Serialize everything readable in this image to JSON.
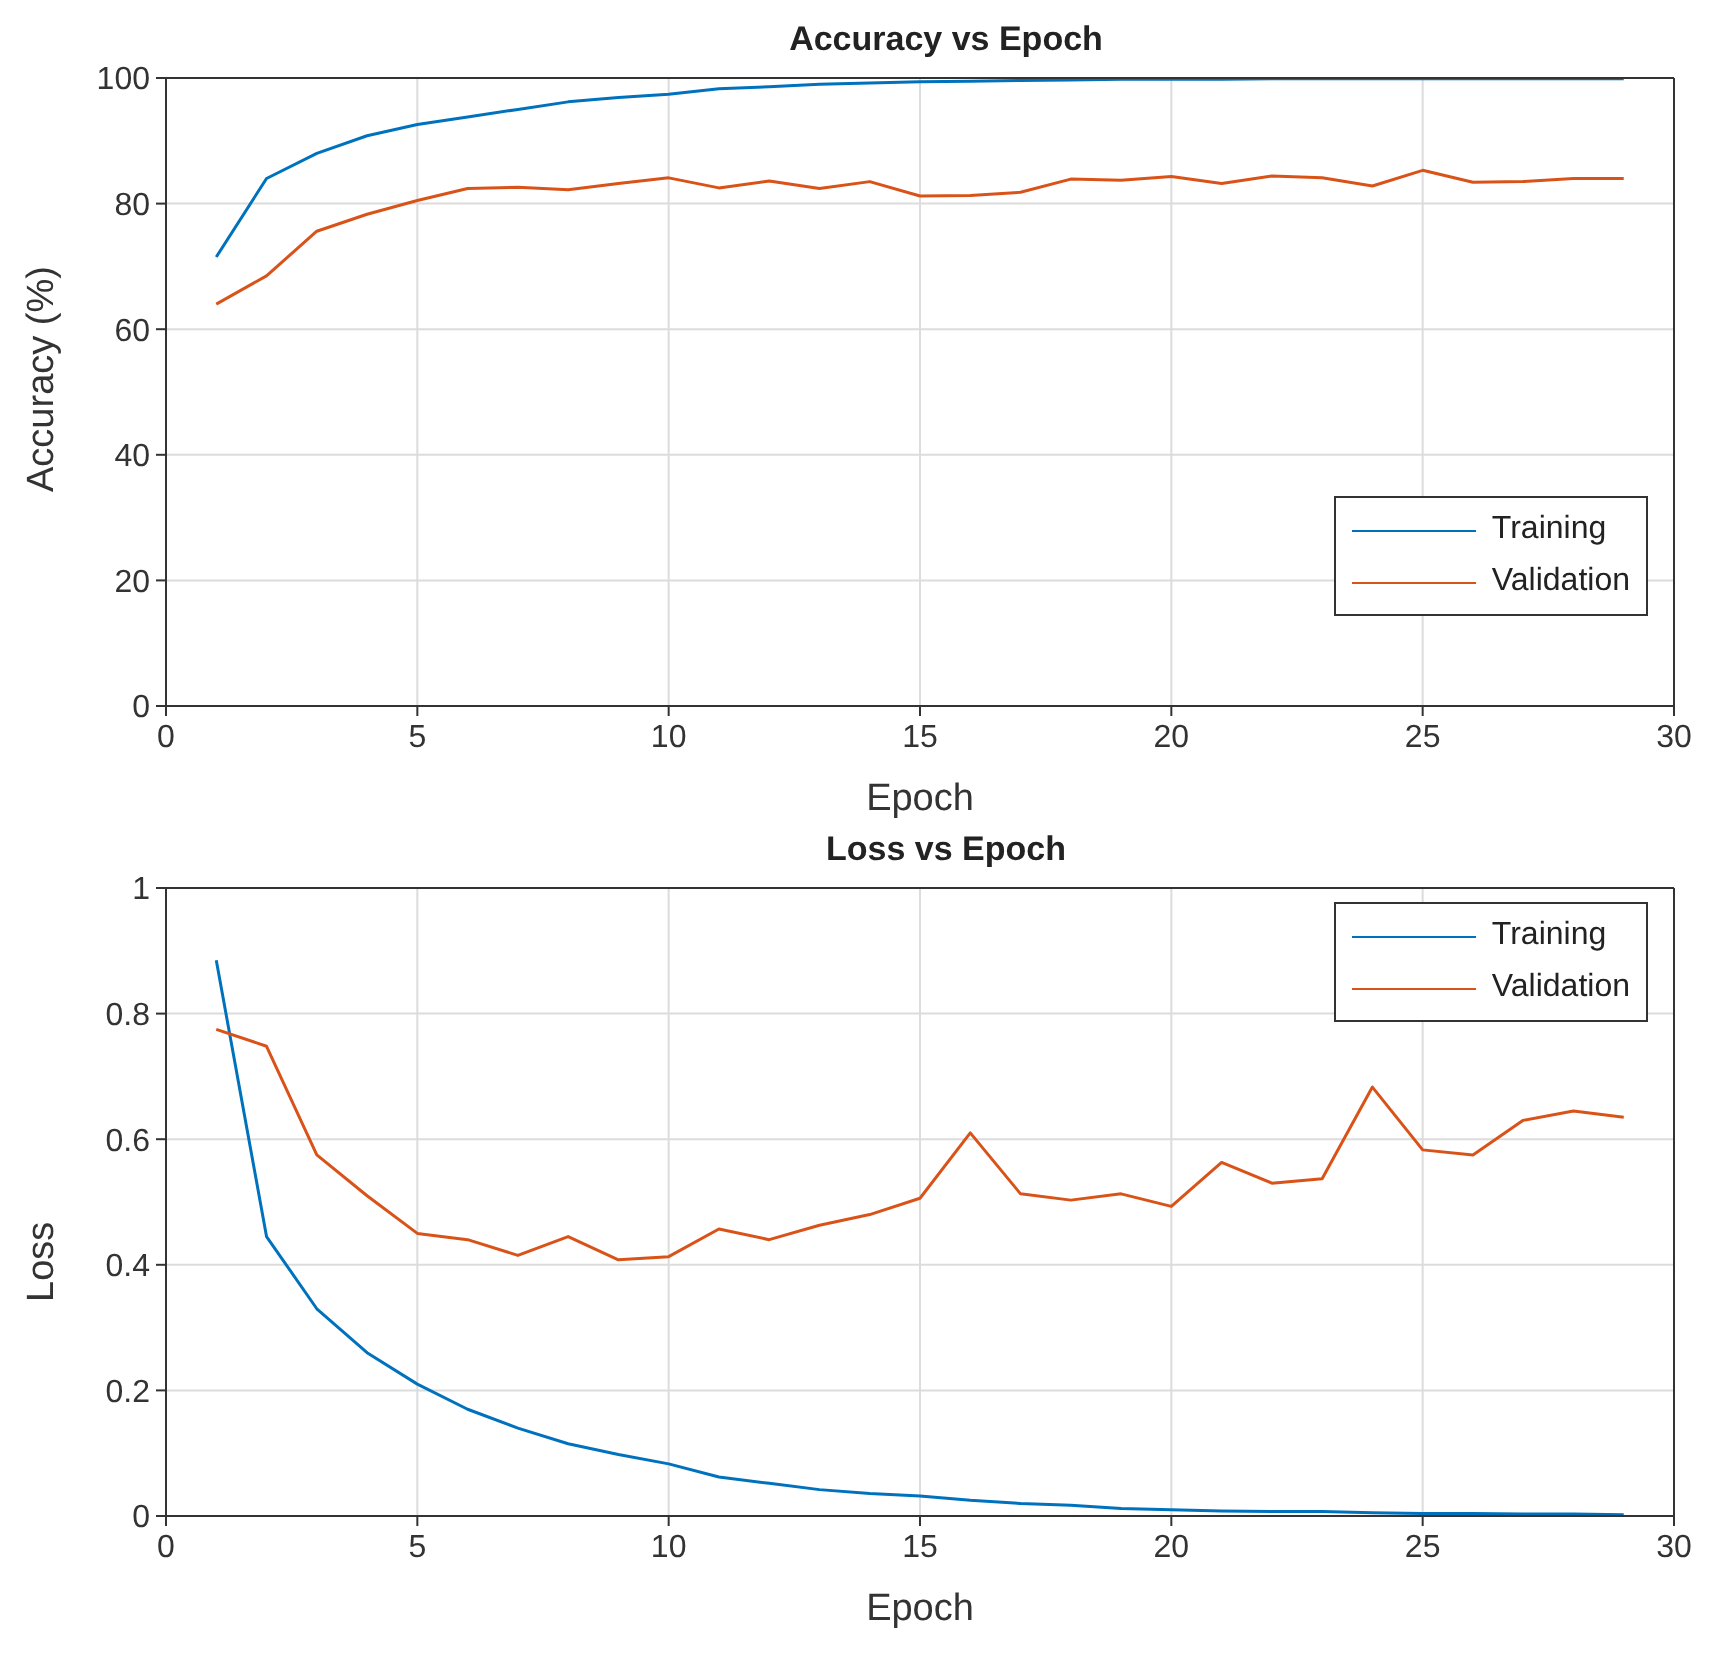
{
  "chart_data": [
    {
      "type": "line",
      "title": "Accuracy vs Epoch",
      "xlabel": "Epoch",
      "ylabel": "Accuracy (%)",
      "x": [
        1,
        2,
        3,
        4,
        5,
        6,
        7,
        8,
        9,
        10,
        11,
        12,
        13,
        14,
        15,
        16,
        17,
        18,
        19,
        20,
        21,
        22,
        23,
        24,
        25,
        26,
        27,
        28,
        29
      ],
      "xlim": [
        0,
        30
      ],
      "xticks": [
        0,
        5,
        10,
        15,
        20,
        25,
        30
      ],
      "ylim": [
        0,
        100
      ],
      "yticks": [
        0,
        20,
        40,
        60,
        80,
        100
      ],
      "grid": true,
      "legend": "bottom right",
      "series": [
        {
          "name": "Training",
          "color": "#0072bd",
          "values": [
            71.5,
            84,
            88,
            90.8,
            92.6,
            93.8,
            95,
            96.2,
            96.9,
            97.4,
            98.3,
            98.6,
            99.0,
            99.2,
            99.4,
            99.5,
            99.6,
            99.7,
            99.8,
            99.8,
            99.8,
            99.9,
            99.9,
            99.9,
            99.9,
            99.9,
            99.9,
            99.9,
            99.9
          ]
        },
        {
          "name": "Validation",
          "color": "#d95319",
          "values": [
            64,
            68.5,
            75.6,
            78.3,
            80.5,
            82.4,
            82.6,
            82.2,
            83.2,
            84.1,
            82.5,
            83.6,
            82.4,
            83.5,
            81.2,
            81.3,
            81.8,
            83.9,
            83.7,
            84.3,
            83.2,
            84.4,
            84.1,
            82.8,
            85.3,
            83.4,
            83.5,
            84,
            84
          ]
        }
      ]
    },
    {
      "type": "line",
      "title": "Loss vs Epoch",
      "xlabel": "Epoch",
      "ylabel": "Loss",
      "x": [
        1,
        2,
        3,
        4,
        5,
        6,
        7,
        8,
        9,
        10,
        11,
        12,
        13,
        14,
        15,
        16,
        17,
        18,
        19,
        20,
        21,
        22,
        23,
        24,
        25,
        26,
        27,
        28,
        29
      ],
      "xlim": [
        0,
        30
      ],
      "xticks": [
        0,
        5,
        10,
        15,
        20,
        25,
        30
      ],
      "ylim": [
        0,
        1
      ],
      "yticks": [
        0,
        0.2,
        0.4,
        0.6,
        0.8,
        1
      ],
      "grid": true,
      "legend": "top right",
      "series": [
        {
          "name": "Training",
          "color": "#0072bd",
          "values": [
            0.885,
            0.445,
            0.33,
            0.26,
            0.21,
            0.17,
            0.14,
            0.115,
            0.098,
            0.083,
            0.062,
            0.052,
            0.042,
            0.036,
            0.032,
            0.025,
            0.02,
            0.017,
            0.012,
            0.01,
            0.008,
            0.007,
            0.007,
            0.005,
            0.004,
            0.004,
            0.003,
            0.003,
            0.002
          ]
        },
        {
          "name": "Validation",
          "color": "#d95319",
          "values": [
            0.775,
            0.748,
            0.575,
            0.51,
            0.45,
            0.44,
            0.415,
            0.445,
            0.408,
            0.413,
            0.457,
            0.44,
            0.463,
            0.48,
            0.506,
            0.61,
            0.513,
            0.503,
            0.513,
            0.493,
            0.563,
            0.53,
            0.537,
            0.683,
            0.583,
            0.575,
            0.63,
            0.645,
            0.635
          ]
        }
      ]
    }
  ]
}
